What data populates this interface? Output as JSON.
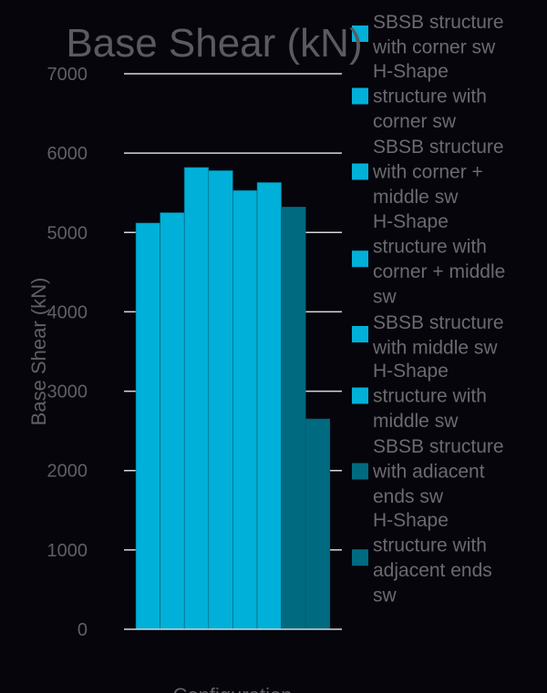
{
  "chart_data": {
    "type": "bar",
    "title": "Base Shear (kN)",
    "xlabel": "Configuration",
    "ylabel": "Base Shear (kN)",
    "ylim": [
      0,
      7000
    ],
    "yticks": [
      0,
      1000,
      2000,
      3000,
      4000,
      5000,
      6000,
      7000
    ],
    "grid": true,
    "legend_position": "right",
    "series": [
      {
        "name": "SBSB structure with corner sw",
        "value": 5120,
        "color": "#00b0d8"
      },
      {
        "name": "H-Shape structure with corner sw",
        "value": 5250,
        "color": "#00b0d8"
      },
      {
        "name": "SBSB structure with corner + middle sw",
        "value": 5820,
        "color": "#00b0d8"
      },
      {
        "name": "H-Shape structure with corner + middle sw",
        "value": 5780,
        "color": "#00b0d8"
      },
      {
        "name": "SBSB  structure with middle sw",
        "value": 5530,
        "color": "#00b0d8"
      },
      {
        "name": "H-Shape structure with middle sw",
        "value": 5630,
        "color": "#00b0d8"
      },
      {
        "name": "SBSB structure with adiacent ends sw",
        "value": 5320,
        "color": "#006a80"
      },
      {
        "name": "H-Shape structure with adjacent ends sw",
        "value": 2650,
        "color": "#006a80"
      }
    ]
  }
}
